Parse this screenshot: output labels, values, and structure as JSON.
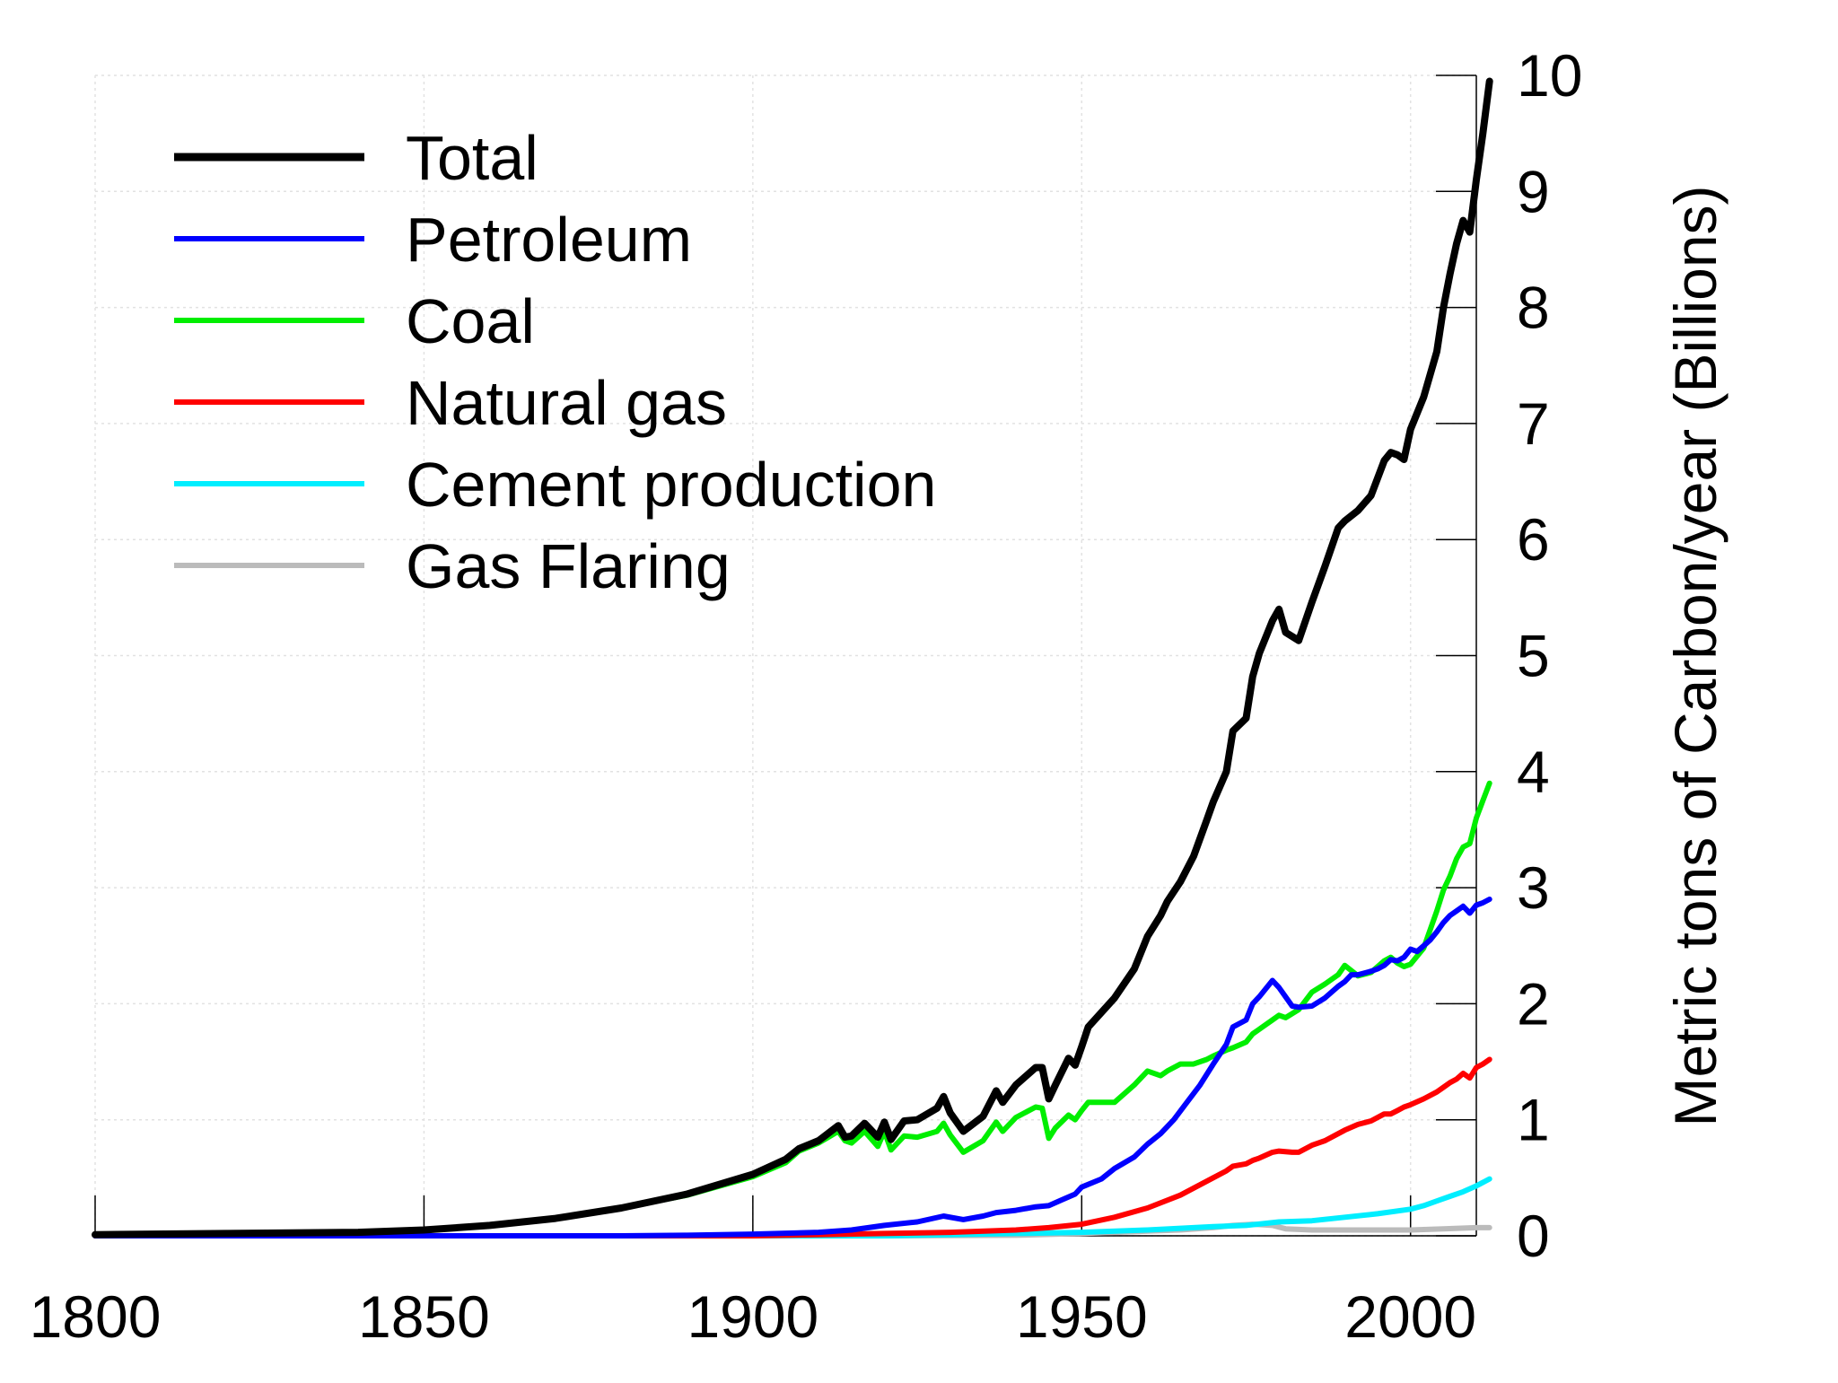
{
  "chart_data": {
    "type": "line",
    "title": "",
    "xlabel": "",
    "ylabel": "Metric tons of Carbon/year (Billions)",
    "xlim": [
      1800,
      2010
    ],
    "ylim": [
      0,
      10
    ],
    "x_ticks": [
      1800,
      1850,
      1900,
      1950,
      2000
    ],
    "y_ticks": [
      0,
      1,
      2,
      3,
      4,
      5,
      6,
      7,
      8,
      9,
      10
    ],
    "grid": true,
    "y_axis_side": "right",
    "legend_position": "top-left",
    "series": [
      {
        "name": "Total",
        "color": "#000000",
        "points": [
          [
            1800,
            0.01
          ],
          [
            1820,
            0.02
          ],
          [
            1840,
            0.03
          ],
          [
            1850,
            0.05
          ],
          [
            1860,
            0.09
          ],
          [
            1870,
            0.15
          ],
          [
            1880,
            0.24
          ],
          [
            1890,
            0.36
          ],
          [
            1900,
            0.53
          ],
          [
            1905,
            0.66
          ],
          [
            1907,
            0.75
          ],
          [
            1910,
            0.82
          ],
          [
            1913,
            0.95
          ],
          [
            1914,
            0.85
          ],
          [
            1915,
            0.86
          ],
          [
            1917,
            0.97
          ],
          [
            1919,
            0.85
          ],
          [
            1920,
            0.98
          ],
          [
            1921,
            0.83
          ],
          [
            1923,
            0.99
          ],
          [
            1925,
            1.0
          ],
          [
            1928,
            1.1
          ],
          [
            1929,
            1.2
          ],
          [
            1930,
            1.06
          ],
          [
            1932,
            0.9
          ],
          [
            1935,
            1.03
          ],
          [
            1937,
            1.25
          ],
          [
            1938,
            1.15
          ],
          [
            1940,
            1.3
          ],
          [
            1943,
            1.45
          ],
          [
            1944,
            1.45
          ],
          [
            1945,
            1.18
          ],
          [
            1946,
            1.3
          ],
          [
            1948,
            1.53
          ],
          [
            1949,
            1.47
          ],
          [
            1950,
            1.63
          ],
          [
            1951,
            1.8
          ],
          [
            1955,
            2.05
          ],
          [
            1958,
            2.3
          ],
          [
            1960,
            2.58
          ],
          [
            1962,
            2.76
          ],
          [
            1963,
            2.88
          ],
          [
            1965,
            3.05
          ],
          [
            1967,
            3.27
          ],
          [
            1969,
            3.58
          ],
          [
            1970,
            3.74
          ],
          [
            1972,
            4.0
          ],
          [
            1973,
            4.35
          ],
          [
            1975,
            4.46
          ],
          [
            1976,
            4.82
          ],
          [
            1977,
            5.02
          ],
          [
            1979,
            5.3
          ],
          [
            1980,
            5.4
          ],
          [
            1981,
            5.2
          ],
          [
            1983,
            5.13
          ],
          [
            1985,
            5.46
          ],
          [
            1987,
            5.77
          ],
          [
            1989,
            6.1
          ],
          [
            1990,
            6.16
          ],
          [
            1992,
            6.25
          ],
          [
            1994,
            6.38
          ],
          [
            1996,
            6.68
          ],
          [
            1997,
            6.75
          ],
          [
            1998,
            6.73
          ],
          [
            1999,
            6.69
          ],
          [
            2000,
            6.95
          ],
          [
            2002,
            7.23
          ],
          [
            2004,
            7.62
          ],
          [
            2005,
            8.0
          ],
          [
            2006,
            8.29
          ],
          [
            2007,
            8.55
          ],
          [
            2008,
            8.75
          ],
          [
            2009,
            8.65
          ],
          [
            2010,
            9.1
          ],
          [
            2011,
            9.5
          ],
          [
            2012,
            9.95
          ]
        ]
      },
      {
        "name": "Petroleum",
        "color": "#0000ff",
        "points": [
          [
            1800,
            0.0
          ],
          [
            1880,
            0.0
          ],
          [
            1890,
            0.005
          ],
          [
            1900,
            0.015
          ],
          [
            1910,
            0.03
          ],
          [
            1915,
            0.05
          ],
          [
            1920,
            0.09
          ],
          [
            1925,
            0.12
          ],
          [
            1929,
            0.17
          ],
          [
            1932,
            0.14
          ],
          [
            1935,
            0.17
          ],
          [
            1937,
            0.2
          ],
          [
            1940,
            0.22
          ],
          [
            1943,
            0.25
          ],
          [
            1945,
            0.26
          ],
          [
            1947,
            0.31
          ],
          [
            1949,
            0.36
          ],
          [
            1950,
            0.42
          ],
          [
            1953,
            0.49
          ],
          [
            1955,
            0.58
          ],
          [
            1958,
            0.68
          ],
          [
            1960,
            0.79
          ],
          [
            1962,
            0.88
          ],
          [
            1964,
            1.0
          ],
          [
            1966,
            1.15
          ],
          [
            1968,
            1.3
          ],
          [
            1970,
            1.48
          ],
          [
            1972,
            1.65
          ],
          [
            1973,
            1.8
          ],
          [
            1975,
            1.86
          ],
          [
            1976,
            2.0
          ],
          [
            1977,
            2.06
          ],
          [
            1979,
            2.2
          ],
          [
            1980,
            2.14
          ],
          [
            1982,
            1.98
          ],
          [
            1983,
            1.97
          ],
          [
            1985,
            1.98
          ],
          [
            1987,
            2.05
          ],
          [
            1989,
            2.15
          ],
          [
            1990,
            2.19
          ],
          [
            1991,
            2.25
          ],
          [
            1992,
            2.25
          ],
          [
            1994,
            2.28
          ],
          [
            1995,
            2.3
          ],
          [
            1996,
            2.33
          ],
          [
            1997,
            2.38
          ],
          [
            1998,
            2.37
          ],
          [
            1999,
            2.4
          ],
          [
            2000,
            2.47
          ],
          [
            2001,
            2.45
          ],
          [
            2002,
            2.5
          ],
          [
            2003,
            2.55
          ],
          [
            2004,
            2.62
          ],
          [
            2005,
            2.7
          ],
          [
            2006,
            2.76
          ],
          [
            2007,
            2.8
          ],
          [
            2008,
            2.84
          ],
          [
            2009,
            2.78
          ],
          [
            2010,
            2.85
          ],
          [
            2011,
            2.87
          ],
          [
            2012,
            2.9
          ]
        ]
      },
      {
        "name": "Coal",
        "color": "#00ee00",
        "points": [
          [
            1800,
            0.01
          ],
          [
            1820,
            0.02
          ],
          [
            1840,
            0.03
          ],
          [
            1850,
            0.05
          ],
          [
            1860,
            0.09
          ],
          [
            1870,
            0.15
          ],
          [
            1880,
            0.24
          ],
          [
            1890,
            0.35
          ],
          [
            1900,
            0.51
          ],
          [
            1905,
            0.63
          ],
          [
            1907,
            0.73
          ],
          [
            1910,
            0.8
          ],
          [
            1913,
            0.9
          ],
          [
            1914,
            0.82
          ],
          [
            1915,
            0.8
          ],
          [
            1917,
            0.9
          ],
          [
            1919,
            0.77
          ],
          [
            1920,
            0.9
          ],
          [
            1921,
            0.74
          ],
          [
            1923,
            0.86
          ],
          [
            1925,
            0.85
          ],
          [
            1928,
            0.9
          ],
          [
            1929,
            0.97
          ],
          [
            1930,
            0.87
          ],
          [
            1932,
            0.72
          ],
          [
            1935,
            0.82
          ],
          [
            1937,
            0.98
          ],
          [
            1938,
            0.9
          ],
          [
            1940,
            1.02
          ],
          [
            1943,
            1.11
          ],
          [
            1944,
            1.1
          ],
          [
            1945,
            0.84
          ],
          [
            1946,
            0.93
          ],
          [
            1948,
            1.04
          ],
          [
            1949,
            1.0
          ],
          [
            1950,
            1.08
          ],
          [
            1951,
            1.15
          ],
          [
            1955,
            1.15
          ],
          [
            1958,
            1.3
          ],
          [
            1960,
            1.42
          ],
          [
            1962,
            1.38
          ],
          [
            1963,
            1.42
          ],
          [
            1965,
            1.48
          ],
          [
            1967,
            1.48
          ],
          [
            1969,
            1.52
          ],
          [
            1970,
            1.55
          ],
          [
            1972,
            1.6
          ],
          [
            1973,
            1.62
          ],
          [
            1975,
            1.67
          ],
          [
            1976,
            1.74
          ],
          [
            1977,
            1.78
          ],
          [
            1979,
            1.86
          ],
          [
            1980,
            1.9
          ],
          [
            1981,
            1.88
          ],
          [
            1983,
            1.95
          ],
          [
            1985,
            2.1
          ],
          [
            1987,
            2.17
          ],
          [
            1989,
            2.25
          ],
          [
            1990,
            2.33
          ],
          [
            1992,
            2.24
          ],
          [
            1994,
            2.27
          ],
          [
            1996,
            2.37
          ],
          [
            1997,
            2.4
          ],
          [
            1998,
            2.35
          ],
          [
            1999,
            2.32
          ],
          [
            2000,
            2.34
          ],
          [
            2002,
            2.48
          ],
          [
            2004,
            2.8
          ],
          [
            2005,
            2.98
          ],
          [
            2006,
            3.1
          ],
          [
            2007,
            3.25
          ],
          [
            2008,
            3.35
          ],
          [
            2009,
            3.38
          ],
          [
            2010,
            3.6
          ],
          [
            2011,
            3.75
          ],
          [
            2012,
            3.9
          ]
        ]
      },
      {
        "name": "Natural gas",
        "color": "#ff0000",
        "points": [
          [
            1800,
            0.0
          ],
          [
            1900,
            0.0
          ],
          [
            1910,
            0.01
          ],
          [
            1920,
            0.02
          ],
          [
            1930,
            0.03
          ],
          [
            1940,
            0.05
          ],
          [
            1945,
            0.07
          ],
          [
            1950,
            0.1
          ],
          [
            1955,
            0.16
          ],
          [
            1960,
            0.24
          ],
          [
            1965,
            0.35
          ],
          [
            1970,
            0.5
          ],
          [
            1972,
            0.56
          ],
          [
            1973,
            0.6
          ],
          [
            1975,
            0.62
          ],
          [
            1976,
            0.65
          ],
          [
            1977,
            0.67
          ],
          [
            1979,
            0.72
          ],
          [
            1980,
            0.73
          ],
          [
            1982,
            0.72
          ],
          [
            1983,
            0.72
          ],
          [
            1985,
            0.78
          ],
          [
            1987,
            0.82
          ],
          [
            1989,
            0.88
          ],
          [
            1990,
            0.91
          ],
          [
            1992,
            0.96
          ],
          [
            1994,
            0.99
          ],
          [
            1996,
            1.05
          ],
          [
            1997,
            1.05
          ],
          [
            1998,
            1.08
          ],
          [
            1999,
            1.11
          ],
          [
            2000,
            1.13
          ],
          [
            2002,
            1.18
          ],
          [
            2004,
            1.24
          ],
          [
            2005,
            1.28
          ],
          [
            2006,
            1.32
          ],
          [
            2007,
            1.35
          ],
          [
            2008,
            1.4
          ],
          [
            2009,
            1.36
          ],
          [
            2010,
            1.45
          ],
          [
            2011,
            1.48
          ],
          [
            2012,
            1.52
          ]
        ]
      },
      {
        "name": "Cement production",
        "color": "#00eeff",
        "points": [
          [
            1800,
            0.0
          ],
          [
            1920,
            0.0
          ],
          [
            1930,
            0.01
          ],
          [
            1940,
            0.02
          ],
          [
            1950,
            0.03
          ],
          [
            1960,
            0.05
          ],
          [
            1970,
            0.08
          ],
          [
            1975,
            0.09
          ],
          [
            1980,
            0.12
          ],
          [
            1985,
            0.13
          ],
          [
            1990,
            0.16
          ],
          [
            1995,
            0.19
          ],
          [
            2000,
            0.23
          ],
          [
            2002,
            0.26
          ],
          [
            2004,
            0.3
          ],
          [
            2006,
            0.34
          ],
          [
            2008,
            0.38
          ],
          [
            2010,
            0.43
          ],
          [
            2012,
            0.49
          ]
        ]
      },
      {
        "name": "Gas Flaring",
        "color": "#bbbbbb",
        "points": [
          [
            1800,
            0.0
          ],
          [
            1920,
            0.0
          ],
          [
            1940,
            0.005
          ],
          [
            1950,
            0.02
          ],
          [
            1960,
            0.04
          ],
          [
            1965,
            0.05
          ],
          [
            1970,
            0.07
          ],
          [
            1973,
            0.09
          ],
          [
            1976,
            0.1
          ],
          [
            1979,
            0.09
          ],
          [
            1981,
            0.06
          ],
          [
            1985,
            0.05
          ],
          [
            1990,
            0.05
          ],
          [
            1995,
            0.05
          ],
          [
            2000,
            0.05
          ],
          [
            2005,
            0.06
          ],
          [
            2010,
            0.07
          ],
          [
            2012,
            0.07
          ]
        ]
      }
    ]
  }
}
